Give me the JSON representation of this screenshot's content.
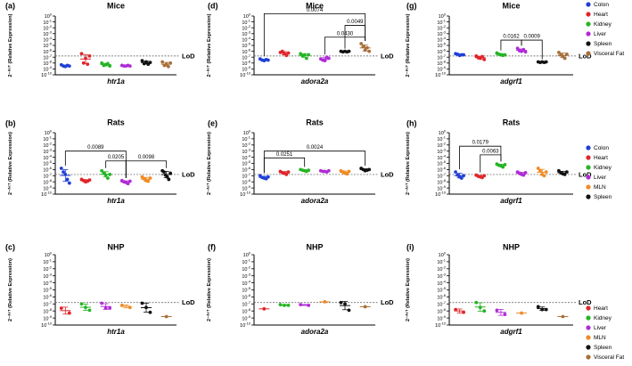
{
  "lod_label": "LoD",
  "y_axis_label": "2⁻ᐞᶜᵀ (Relative Expression)",
  "y_ticks": [
    0,
    -1,
    -2,
    -3,
    -4,
    -5,
    -6,
    -7,
    -8,
    -9,
    -10
  ],
  "lod_exp": -6.8,
  "colors": {
    "Colon": "#1f3fd6",
    "Heart": "#e0252a",
    "Kidney": "#25b525",
    "Liver": "#b02bd6",
    "MLN": "#f08a24",
    "Spleen": "#111111",
    "Visceral Fat": "#a8703a"
  },
  "legends": [
    {
      "row": 0,
      "items": [
        "Colon",
        "Heart",
        "Kidney",
        "Liver",
        "Spleen",
        "Visceral Fat"
      ]
    },
    {
      "row": 1,
      "items": [
        "Colon",
        "Heart",
        "Kidney",
        "Liver",
        "MLN",
        "Spleen"
      ]
    },
    {
      "row": 2,
      "items": [
        "Heart",
        "Kidney",
        "Liver",
        "MLN",
        "Spleen",
        "Visceral Fat"
      ]
    }
  ],
  "chart_data": [
    {
      "panel": "(a)",
      "type": "scatter",
      "title": "Mice",
      "xlabel": "htr1a",
      "ylabel": "2⁻ᐞᶜᵀ (Relative Expression)",
      "y_scale": "log10",
      "ylim": [
        "1e-10",
        "1"
      ],
      "row": 0,
      "col": 0,
      "groups": [
        {
          "tissue": "Colon",
          "values_log10": [
            -8.3,
            -8.5,
            -8.6,
            -8.4,
            -8.5
          ]
        },
        {
          "tissue": "Heart",
          "values_log10": [
            -6.4,
            -8.0,
            -7.2,
            -8.2,
            -6.8
          ]
        },
        {
          "tissue": "Kidney",
          "values_log10": [
            -8.0,
            -8.4,
            -8.3,
            -8.1,
            -8.5
          ]
        },
        {
          "tissue": "Liver",
          "values_log10": [
            -8.4,
            -8.5,
            -8.5,
            -8.4,
            -8.5
          ]
        },
        {
          "tissue": "Spleen",
          "values_log10": [
            -7.6,
            -8.1,
            -7.8,
            -8.2,
            -7.9
          ]
        },
        {
          "tissue": "Visceral Fat",
          "values_log10": [
            -7.8,
            -8.4,
            -8.2,
            -8.6,
            -8.0
          ]
        }
      ],
      "comparisons": []
    },
    {
      "panel": "(d)",
      "type": "scatter",
      "title": "Mice",
      "xlabel": "adora2a",
      "ylabel": "2⁻ᐞᶜᵀ (Relative Expression)",
      "y_scale": "log10",
      "ylim": [
        "1e-10",
        "1"
      ],
      "row": 0,
      "col": 1,
      "groups": [
        {
          "tissue": "Colon",
          "values_log10": [
            -7.3,
            -7.5,
            -7.6,
            -7.4,
            -7.5
          ]
        },
        {
          "tissue": "Heart",
          "values_log10": [
            -6.2,
            -6.0,
            -6.4,
            -6.7,
            -6.3
          ]
        },
        {
          "tissue": "Kidney",
          "values_log10": [
            -6.4,
            -6.8,
            -6.6,
            -7.2,
            -6.6
          ]
        },
        {
          "tissue": "Liver",
          "values_log10": [
            -7.3,
            -7.5,
            -7.6,
            -7.0,
            -7.2
          ]
        },
        {
          "tissue": "Spleen",
          "values_log10": [
            -6.0,
            -6.1,
            -6.0,
            -6.1,
            -6.0
          ]
        },
        {
          "tissue": "Visceral Fat",
          "values_log10": [
            -4.7,
            -5.2,
            -5.8,
            -5.4,
            -6.0
          ]
        }
      ],
      "comparisons": [
        {
          "g1": 0,
          "g2": 5,
          "p": "0.0074"
        },
        {
          "g1": 4,
          "g2": 5,
          "p": "0.0049"
        },
        {
          "g1": 3,
          "g2": 5,
          "p": "0.0430"
        }
      ]
    },
    {
      "panel": "(g)",
      "type": "scatter",
      "title": "Mice",
      "xlabel": "adgrf1",
      "ylabel": "2⁻ᐞᶜᵀ (Relative Expression)",
      "y_scale": "log10",
      "ylim": [
        "1e-10",
        "1"
      ],
      "row": 0,
      "col": 2,
      "groups": [
        {
          "tissue": "Colon",
          "values_log10": [
            -6.4,
            -6.5,
            -6.7,
            -6.6,
            -6.6
          ]
        },
        {
          "tissue": "Heart",
          "values_log10": [
            -6.8,
            -7.1,
            -7.2,
            -6.9,
            -7.4
          ]
        },
        {
          "tissue": "Kidney",
          "values_log10": [
            -6.3,
            -6.5,
            -6.6,
            -6.7,
            -6.6
          ]
        },
        {
          "tissue": "Liver",
          "values_log10": [
            -5.5,
            -5.9,
            -6.0,
            -5.7,
            -6.1
          ]
        },
        {
          "tissue": "Spleen",
          "values_log10": [
            -7.8,
            -7.9,
            -7.8,
            -7.9,
            -7.8
          ]
        },
        {
          "tissue": "Visceral Fat",
          "values_log10": [
            -6.2,
            -6.6,
            -6.9,
            -7.2,
            -6.5
          ]
        }
      ],
      "comparisons": [
        {
          "g1": 2,
          "g2": 3,
          "p": "0.0162"
        },
        {
          "g1": 3,
          "g2": 4,
          "p": "0.0009"
        }
      ]
    },
    {
      "panel": "(b)",
      "type": "scatter",
      "title": "Rats",
      "xlabel": "htr1a",
      "ylabel": "2⁻ᐞᶜᵀ (Relative Expression)",
      "y_scale": "log10",
      "ylim": [
        "1e-10",
        "1"
      ],
      "row": 1,
      "col": 0,
      "groups": [
        {
          "tissue": "Colon",
          "values_log10": [
            -5.8,
            -6.4,
            -6.8,
            -7.6,
            -8.2
          ]
        },
        {
          "tissue": "Heart",
          "values_log10": [
            -7.6,
            -7.8,
            -8.0,
            -7.9,
            -7.7
          ]
        },
        {
          "tissue": "Kidney",
          "values_log10": [
            -6.2,
            -6.6,
            -6.9,
            -7.4,
            -6.8
          ]
        },
        {
          "tissue": "Liver",
          "values_log10": [
            -7.8,
            -8.0,
            -8.1,
            -8.3,
            -7.9
          ]
        },
        {
          "tissue": "MLN",
          "values_log10": [
            -7.2,
            -7.5,
            -7.8,
            -7.9,
            -7.4
          ]
        },
        {
          "tissue": "Spleen",
          "values_log10": [
            -6.2,
            -6.4,
            -6.9,
            -7.2,
            -7.6,
            -6.6
          ]
        }
      ],
      "comparisons": [
        {
          "g1": 0,
          "g2": 3,
          "p": "0.0089"
        },
        {
          "g1": 2,
          "g2": 3,
          "p": "0.0205"
        },
        {
          "g1": 3,
          "g2": 5,
          "p": "0.0098"
        }
      ]
    },
    {
      "panel": "(e)",
      "type": "scatter",
      "title": "Rats",
      "xlabel": "adora2a",
      "ylabel": "2⁻ᐞᶜᵀ (Relative Expression)",
      "y_scale": "log10",
      "ylim": [
        "1e-10",
        "1"
      ],
      "row": 1,
      "col": 1,
      "groups": [
        {
          "tissue": "Colon",
          "values_log10": [
            -7.0,
            -7.3,
            -7.4,
            -7.5,
            -7.2
          ]
        },
        {
          "tissue": "Heart",
          "values_log10": [
            -6.3,
            -6.5,
            -6.6,
            -6.8,
            -6.4
          ]
        },
        {
          "tissue": "Kidney",
          "values_log10": [
            -6.0,
            -6.1,
            -6.2,
            -6.3,
            -6.1
          ]
        },
        {
          "tissue": "Liver",
          "values_log10": [
            -6.2,
            -6.3,
            -6.3,
            -6.4,
            -6.2
          ]
        },
        {
          "tissue": "MLN",
          "values_log10": [
            -6.2,
            -6.4,
            -6.6,
            -6.7,
            -6.3
          ]
        },
        {
          "tissue": "Spleen",
          "values_log10": [
            -5.8,
            -6.0,
            -6.2,
            -6.1,
            -6.0
          ]
        }
      ],
      "comparisons": [
        {
          "g1": 0,
          "g2": 2,
          "p": "0.0251"
        },
        {
          "g1": 0,
          "g2": 5,
          "p": "0.0024"
        }
      ]
    },
    {
      "panel": "(h)",
      "type": "scatter",
      "title": "Rats",
      "xlabel": "adgrf1",
      "ylabel": "2⁻ᐞᶜᵀ (Relative Expression)",
      "y_scale": "log10",
      "ylim": [
        "1e-10",
        "1"
      ],
      "row": 1,
      "col": 2,
      "groups": [
        {
          "tissue": "Colon",
          "values_log10": [
            -6.4,
            -6.9,
            -7.2,
            -7.4,
            -7.0
          ]
        },
        {
          "tissue": "Heart",
          "values_log10": [
            -6.9,
            -7.1,
            -7.2,
            -7.3,
            -7.0
          ]
        },
        {
          "tissue": "Kidney",
          "values_log10": [
            -5.1,
            -5.3,
            -5.4,
            -5.6,
            -5.2
          ]
        },
        {
          "tissue": "Liver",
          "values_log10": [
            -6.4,
            -6.6,
            -6.8,
            -6.9,
            -6.5
          ]
        },
        {
          "tissue": "MLN",
          "values_log10": [
            -5.8,
            -6.2,
            -6.8,
            -7.0,
            -6.4
          ]
        },
        {
          "tissue": "Spleen",
          "values_log10": [
            -6.2,
            -6.5,
            -6.7,
            -6.8,
            -6.4
          ]
        }
      ],
      "comparisons": [
        {
          "g1": 0,
          "g2": 2,
          "p": "0.0179"
        },
        {
          "g1": 1,
          "g2": 2,
          "p": "0.0063"
        }
      ]
    },
    {
      "panel": "(c)",
      "type": "scatter",
      "title": "NHP",
      "xlabel": "htr1a",
      "ylabel": "2⁻ᐞᶜᵀ (Relative Expression)",
      "y_scale": "log10",
      "ylim": [
        "1e-10",
        "1"
      ],
      "row": 2,
      "col": 0,
      "groups": [
        {
          "tissue": "Heart",
          "values_log10": [
            -7.6,
            -8.3
          ]
        },
        {
          "tissue": "Kidney",
          "values_log10": [
            -7.0,
            -7.5,
            -7.9
          ]
        },
        {
          "tissue": "Liver",
          "values_log10": [
            -6.9,
            -7.6,
            -7.6
          ]
        },
        {
          "tissue": "MLN",
          "values_log10": [
            -7.2,
            -7.5
          ]
        },
        {
          "tissue": "Spleen",
          "values_log10": [
            -6.9,
            -7.5,
            -8.2
          ]
        },
        {
          "tissue": "Visceral Fat",
          "values_log10": [
            -8.8
          ]
        }
      ],
      "comparisons": []
    },
    {
      "panel": "(f)",
      "type": "scatter",
      "title": "NHP",
      "xlabel": "adora2a",
      "ylabel": "2⁻ᐞᶜᵀ (Relative Expression)",
      "y_scale": "log10",
      "ylim": [
        "1e-10",
        "1"
      ],
      "row": 2,
      "col": 1,
      "groups": [
        {
          "tissue": "Heart",
          "values_log10": [
            -7.7
          ]
        },
        {
          "tissue": "Kidney",
          "values_log10": [
            -7.1,
            -7.2,
            -7.2
          ]
        },
        {
          "tissue": "Liver",
          "values_log10": [
            -7.1,
            -7.2
          ]
        },
        {
          "tissue": "MLN",
          "values_log10": [
            -6.7
          ]
        },
        {
          "tissue": "Spleen",
          "values_log10": [
            -6.8,
            -7.0,
            -7.9
          ]
        },
        {
          "tissue": "Visceral Fat",
          "values_log10": [
            -7.4
          ]
        }
      ],
      "comparisons": []
    },
    {
      "panel": "(i)",
      "type": "scatter",
      "title": "NHP",
      "xlabel": "adgrf1",
      "ylabel": "2⁻ᐞᶜᵀ (Relative Expression)",
      "y_scale": "log10",
      "ylim": [
        "1e-10",
        "1"
      ],
      "row": 2,
      "col": 2,
      "groups": [
        {
          "tissue": "Heart",
          "values_log10": [
            -7.8,
            -8.2
          ]
        },
        {
          "tissue": "Kidney",
          "values_log10": [
            -6.8,
            -7.5,
            -8.0
          ]
        },
        {
          "tissue": "Liver",
          "values_log10": [
            -7.9,
            -8.5
          ]
        },
        {
          "tissue": "MLN",
          "values_log10": [
            -8.3
          ]
        },
        {
          "tissue": "Spleen",
          "values_log10": [
            -7.4,
            -7.8,
            -7.8
          ]
        },
        {
          "tissue": "Visceral Fat",
          "values_log10": [
            -8.8
          ]
        }
      ],
      "comparisons": []
    }
  ]
}
